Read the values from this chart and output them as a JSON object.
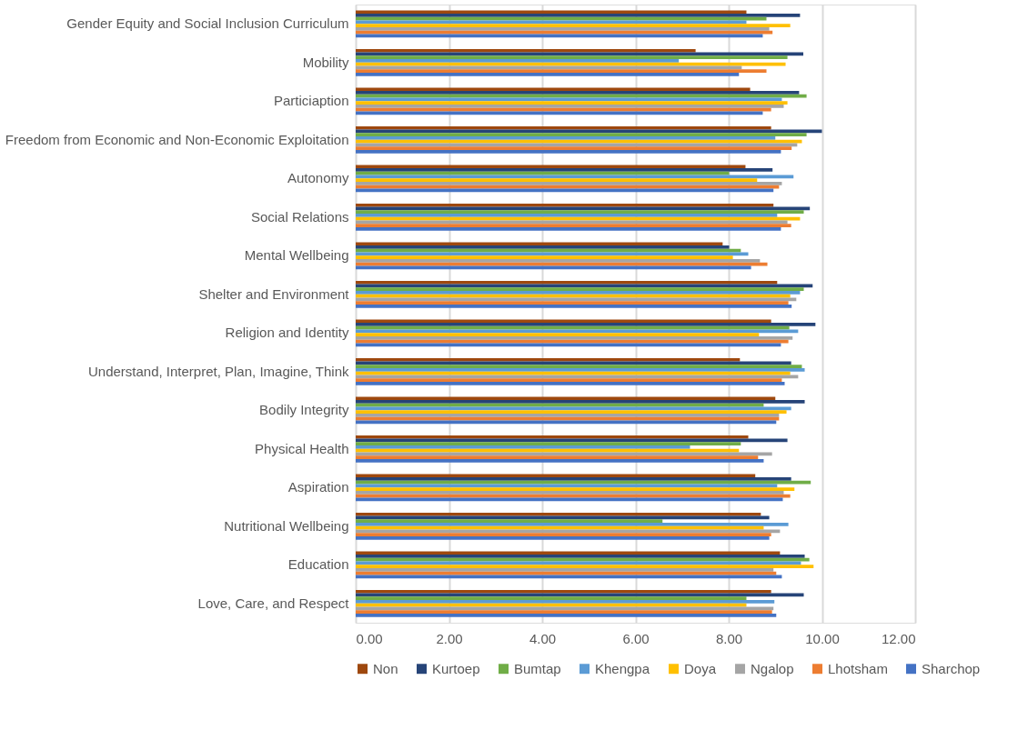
{
  "chart_data": {
    "type": "bar",
    "orientation": "horizontal",
    "categories": [
      "Gender Equity and Social Inclusion Curriculum",
      "Mobility",
      "Particiaption",
      "Freedom from Economic and Non-Economic Exploitation",
      "Autonomy",
      "Social Relations",
      "Mental Wellbeing",
      "Shelter and Environment",
      "Religion and Identity",
      "Understand, Interpret, Plan, Imagine, Think",
      "Bodily Integrity",
      "Physical Health",
      "Aspiration",
      "Nutritional Wellbeing",
      "Education",
      "Love, Care, and Respect"
    ],
    "series": [
      {
        "name": "Non",
        "color": "#9e480e",
        "values": [
          8.38,
          7.29,
          8.46,
          8.91,
          8.36,
          8.96,
          7.87,
          9.04,
          8.91,
          8.24,
          9.0,
          8.42,
          8.57,
          8.69,
          9.1,
          8.91
        ]
      },
      {
        "name": "Kurtoep",
        "color": "#264478",
        "values": [
          9.53,
          9.6,
          9.51,
          10.0,
          8.94,
          9.74,
          8.01,
          9.8,
          9.86,
          9.34,
          9.63,
          9.26,
          9.34,
          8.87,
          9.63,
          9.61
        ]
      },
      {
        "name": "Bumtap",
        "color": "#70ad47",
        "values": [
          8.81,
          9.26,
          9.67,
          9.67,
          8.01,
          9.61,
          8.26,
          9.61,
          9.3,
          9.57,
          8.75,
          8.26,
          9.76,
          6.58,
          9.73,
          8.38
        ]
      },
      {
        "name": "Khengpa",
        "color": "#5b9bd5",
        "values": [
          8.38,
          6.93,
          9.14,
          9.0,
          9.39,
          9.04,
          8.42,
          9.53,
          9.49,
          9.63,
          9.34,
          7.17,
          9.04,
          9.28,
          9.55,
          8.98
        ]
      },
      {
        "name": "Doya",
        "color": "#ffc000",
        "values": [
          9.32,
          9.22,
          9.26,
          9.57,
          8.61,
          9.53,
          8.09,
          9.32,
          8.65,
          9.32,
          9.24,
          8.22,
          9.41,
          8.75,
          9.82,
          8.38
        ]
      },
      {
        "name": "Ngalop",
        "color": "#a5a5a5",
        "values": [
          8.87,
          8.28,
          9.18,
          9.47,
          9.14,
          9.26,
          8.67,
          9.45,
          9.37,
          9.49,
          9.08,
          8.93,
          9.18,
          9.1,
          8.96,
          8.96
        ]
      },
      {
        "name": "Lhotsham",
        "color": "#ed7d31",
        "values": [
          8.94,
          8.81,
          8.91,
          9.35,
          9.08,
          9.34,
          8.83,
          9.28,
          9.28,
          9.14,
          9.08,
          8.63,
          9.32,
          8.91,
          9.02,
          8.93
        ]
      },
      {
        "name": "Sharchop",
        "color": "#4472c4",
        "values": [
          8.73,
          8.22,
          8.73,
          9.12,
          8.96,
          9.12,
          8.48,
          9.35,
          9.12,
          9.2,
          9.02,
          8.75,
          9.16,
          8.87,
          9.14,
          9.02
        ]
      }
    ],
    "xlim": [
      0,
      12
    ],
    "xticks": [
      {
        "value": 0,
        "label": "0.00"
      },
      {
        "value": 2,
        "label": "2.00"
      },
      {
        "value": 4,
        "label": "4.00"
      },
      {
        "value": 6,
        "label": "6.00"
      },
      {
        "value": 8,
        "label": "8.00"
      },
      {
        "value": 10,
        "label": "10.00"
      },
      {
        "value": 12,
        "label": "12.00"
      }
    ],
    "grid": "x",
    "legend": "bottom"
  }
}
